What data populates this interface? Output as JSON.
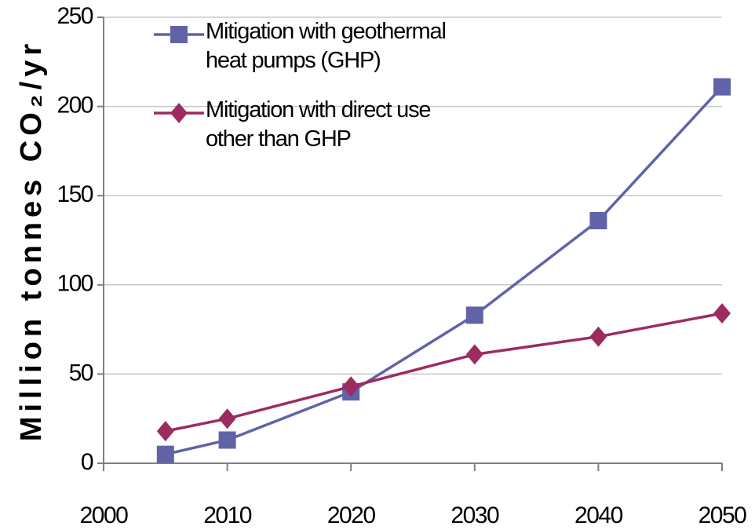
{
  "chart_data": {
    "type": "line",
    "y_label": "Million tonnes CO₂/yr",
    "x": [
      2005,
      2010,
      2020,
      2030,
      2040,
      2050
    ],
    "series": [
      {
        "name": "Mitigation with geothermal heat pumps (GHP)",
        "color": "#6163a8",
        "marker": "square",
        "values": [
          5,
          13,
          40,
          83,
          136,
          211
        ]
      },
      {
        "name": "Mitigation with direct use other than GHP",
        "color": "#9c2c60",
        "marker": "diamond",
        "values": [
          18,
          25,
          43,
          61,
          71,
          84
        ]
      }
    ],
    "xlim": [
      2000,
      2050
    ],
    "xticks": [
      2000,
      2010,
      2020,
      2030,
      2040,
      2050
    ],
    "ylim": [
      0,
      250
    ],
    "yticks": [
      0,
      50,
      100,
      150,
      200,
      250
    ],
    "grid": true,
    "legend": "top-left"
  }
}
